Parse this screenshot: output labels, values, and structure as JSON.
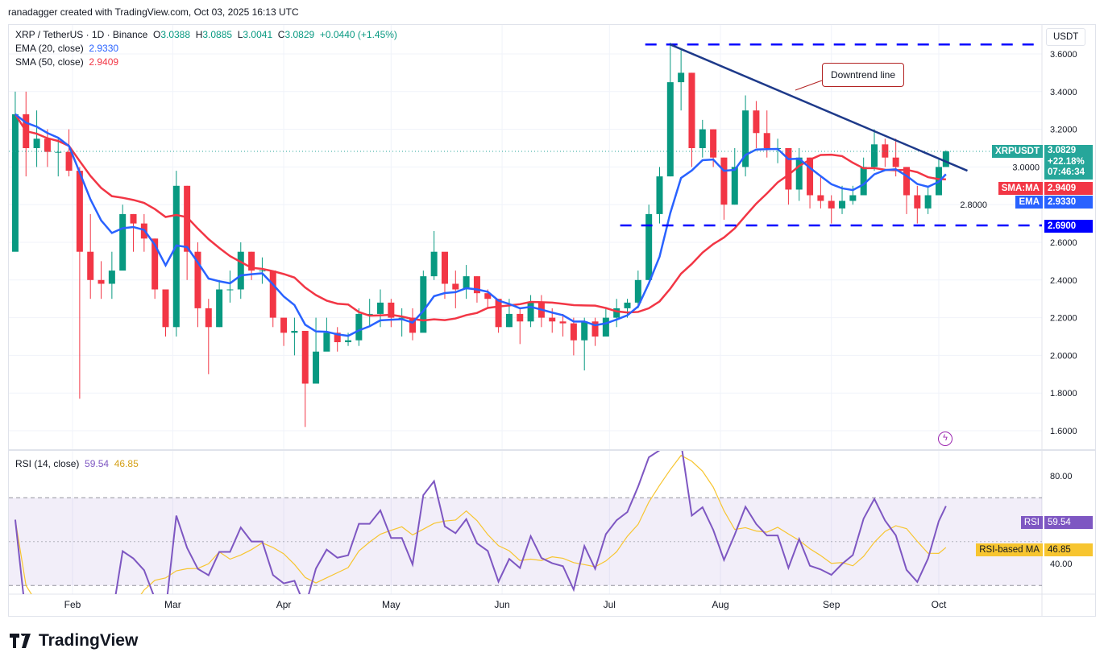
{
  "credit": "ranadagger created with TradingView.com, Oct 03, 2025 16:13 UTC",
  "legend": {
    "symbol": "XRP / TetherUS · 1D · Binance",
    "o_label": "O",
    "o": "3.0388",
    "h_label": "H",
    "h": "3.0885",
    "l_label": "L",
    "l": "3.0041",
    "c_label": "C",
    "c": "3.0829",
    "change": "+0.0440 (+1.45%)",
    "ema_label": "EMA (20, close)",
    "ema_value": "2.9330",
    "sma_label": "SMA (50, close)",
    "sma_value": "2.9409",
    "rsi_label": "RSI (14, close)",
    "rsi_value": "59.54",
    "rsi_ma_value": "46.85"
  },
  "price_axis": {
    "currency": "USDT",
    "ticks": [
      "3.6000",
      "3.4000",
      "3.2000",
      "3.0000",
      "2.8000",
      "2.6000",
      "2.4000",
      "2.2000",
      "2.0000",
      "1.8000",
      "1.6000"
    ],
    "symbol_tag": "XRPUSDT",
    "last_price": "3.0829",
    "last_change": "+22.18%",
    "countdown": "07:46:34",
    "sma_tag": "SMA:MA",
    "sma_value": "2.9409",
    "ema_tag": "EMA",
    "ema_value": "2.9330",
    "support_value": "2.6900"
  },
  "rsi_axis": {
    "ticks": [
      "80.00",
      "40.00"
    ],
    "rsi_tag": "RSI",
    "rsi_value": "59.54",
    "ma_tag": "RSI-based MA",
    "ma_value": "46.85"
  },
  "time_axis": [
    "Feb",
    "Mar",
    "Apr",
    "May",
    "Jun",
    "Jul",
    "Aug",
    "Sep",
    "Oct"
  ],
  "annotation": "Downtrend line",
  "colors": {
    "up": "#089981",
    "down": "#f23645",
    "ema": "#2962ff",
    "sma": "#f23645",
    "rsi": "#7e57c2",
    "rsi_ma": "#f7c530",
    "trendline": "#1e3a8a",
    "level": "#0000ff"
  },
  "chart_data": {
    "type": "candlestick",
    "title": "XRP / TetherUS · 1D · Binance",
    "ylim": [
      1.55,
      3.72
    ],
    "candle_format": [
      "date",
      "close",
      "high",
      "low"
    ],
    "first_open": 2.55,
    "candles": [
      [
        "2025-01-16",
        3.28,
        3.4,
        2.9
      ],
      [
        "2025-01-19",
        3.1,
        3.4,
        2.95
      ],
      [
        "2025-01-22",
        3.15,
        3.3,
        3.0
      ],
      [
        "2025-01-25",
        3.08,
        3.2,
        3.0
      ],
      [
        "2025-01-28",
        3.08,
        3.15,
        2.95
      ],
      [
        "2025-01-31",
        2.98,
        3.2,
        2.95
      ],
      [
        "2025-02-03",
        2.55,
        3.0,
        1.77
      ],
      [
        "2025-02-06",
        2.4,
        2.75,
        2.3
      ],
      [
        "2025-02-09",
        2.38,
        2.5,
        2.3
      ],
      [
        "2025-02-12",
        2.45,
        2.55,
        2.3
      ],
      [
        "2025-02-15",
        2.75,
        2.8,
        2.5
      ],
      [
        "2025-02-18",
        2.7,
        2.75,
        2.55
      ],
      [
        "2025-02-21",
        2.62,
        2.75,
        2.55
      ],
      [
        "2025-02-24",
        2.35,
        2.62,
        2.3
      ],
      [
        "2025-02-27",
        2.15,
        2.35,
        2.1
      ],
      [
        "2025-03-02",
        2.9,
        2.98,
        2.1
      ],
      [
        "2025-03-05",
        2.55,
        2.9,
        2.4
      ],
      [
        "2025-03-08",
        2.25,
        2.6,
        2.15
      ],
      [
        "2025-03-11",
        2.15,
        2.3,
        1.9
      ],
      [
        "2025-03-14",
        2.35,
        2.4,
        2.15
      ],
      [
        "2025-03-17",
        2.35,
        2.45,
        2.28
      ],
      [
        "2025-03-20",
        2.55,
        2.6,
        2.3
      ],
      [
        "2025-03-23",
        2.45,
        2.55,
        2.4
      ],
      [
        "2025-03-26",
        2.45,
        2.52,
        2.38
      ],
      [
        "2025-03-29",
        2.2,
        2.45,
        2.15
      ],
      [
        "2025-04-01",
        2.12,
        2.2,
        2.05
      ],
      [
        "2025-04-04",
        2.13,
        2.2,
        2.0
      ],
      [
        "2025-04-07",
        1.85,
        2.1,
        1.62
      ],
      [
        "2025-04-10",
        2.02,
        2.2,
        1.9
      ],
      [
        "2025-04-13",
        2.12,
        2.2,
        2.05
      ],
      [
        "2025-04-16",
        2.07,
        2.15,
        2.02
      ],
      [
        "2025-04-19",
        2.08,
        2.12,
        2.05
      ],
      [
        "2025-04-22",
        2.22,
        2.25,
        2.05
      ],
      [
        "2025-04-25",
        2.22,
        2.3,
        2.15
      ],
      [
        "2025-04-28",
        2.28,
        2.35,
        2.15
      ],
      [
        "2025-05-01",
        2.2,
        2.3,
        2.15
      ],
      [
        "2025-05-04",
        2.2,
        2.25,
        2.1
      ],
      [
        "2025-05-07",
        2.12,
        2.25,
        2.08
      ],
      [
        "2025-05-10",
        2.42,
        2.45,
        2.15
      ],
      [
        "2025-05-13",
        2.55,
        2.66,
        2.4
      ],
      [
        "2025-05-16",
        2.38,
        2.5,
        2.3
      ],
      [
        "2025-05-19",
        2.35,
        2.45,
        2.25
      ],
      [
        "2025-05-22",
        2.42,
        2.48,
        2.3
      ],
      [
        "2025-05-25",
        2.33,
        2.42,
        2.28
      ],
      [
        "2025-05-28",
        2.3,
        2.35,
        2.25
      ],
      [
        "2025-05-31",
        2.15,
        2.3,
        2.12
      ],
      [
        "2025-06-03",
        2.22,
        2.3,
        2.15
      ],
      [
        "2025-06-06",
        2.18,
        2.25,
        2.06
      ],
      [
        "2025-06-09",
        2.28,
        2.32,
        2.15
      ],
      [
        "2025-06-12",
        2.2,
        2.32,
        2.15
      ],
      [
        "2025-06-15",
        2.18,
        2.25,
        2.12
      ],
      [
        "2025-06-18",
        2.17,
        2.22,
        2.1
      ],
      [
        "2025-06-21",
        2.08,
        2.2,
        2.0
      ],
      [
        "2025-06-24",
        2.18,
        2.2,
        1.92
      ],
      [
        "2025-06-27",
        2.1,
        2.2,
        2.05
      ],
      [
        "2025-06-30",
        2.2,
        2.25,
        2.12
      ],
      [
        "2025-07-03",
        2.25,
        2.3,
        2.15
      ],
      [
        "2025-07-06",
        2.28,
        2.3,
        2.2
      ],
      [
        "2025-07-09",
        2.4,
        2.45,
        2.25
      ],
      [
        "2025-07-12",
        2.75,
        2.8,
        2.4
      ],
      [
        "2025-07-15",
        2.95,
        3.0,
        2.7
      ],
      [
        "2025-07-18",
        3.45,
        3.66,
        2.95
      ],
      [
        "2025-07-21",
        3.5,
        3.62,
        3.3
      ],
      [
        "2025-07-24",
        3.1,
        3.5,
        3.0
      ],
      [
        "2025-07-27",
        3.2,
        3.25,
        3.05
      ],
      [
        "2025-07-30",
        3.05,
        3.2,
        3.0
      ],
      [
        "2025-08-02",
        2.8,
        3.05,
        2.72
      ],
      [
        "2025-08-05",
        3.0,
        3.1,
        2.8
      ],
      [
        "2025-08-08",
        3.3,
        3.38,
        2.95
      ],
      [
        "2025-08-11",
        3.18,
        3.35,
        3.1
      ],
      [
        "2025-08-14",
        3.1,
        3.3,
        3.05
      ],
      [
        "2025-08-17",
        3.1,
        3.15,
        3.02
      ],
      [
        "2025-08-20",
        2.88,
        3.1,
        2.8
      ],
      [
        "2025-08-23",
        3.05,
        3.1,
        2.82
      ],
      [
        "2025-08-26",
        2.85,
        3.05,
        2.78
      ],
      [
        "2025-08-29",
        2.82,
        2.95,
        2.78
      ],
      [
        "2025-09-01",
        2.78,
        2.85,
        2.7
      ],
      [
        "2025-09-04",
        2.82,
        2.9,
        2.75
      ],
      [
        "2025-09-07",
        2.85,
        2.9,
        2.8
      ],
      [
        "2025-09-10",
        3.0,
        3.05,
        2.85
      ],
      [
        "2025-09-13",
        3.12,
        3.2,
        2.98
      ],
      [
        "2025-09-16",
        3.05,
        3.15,
        3.0
      ],
      [
        "2025-09-19",
        3.0,
        3.15,
        2.95
      ],
      [
        "2025-09-22",
        2.85,
        3.0,
        2.75
      ],
      [
        "2025-09-25",
        2.78,
        2.9,
        2.7
      ],
      [
        "2025-09-28",
        2.85,
        2.9,
        2.75
      ],
      [
        "2025-10-01",
        3.0,
        3.05,
        2.85
      ],
      [
        "2025-10-03",
        3.0829,
        3.0885,
        3.0041
      ]
    ],
    "trendline": {
      "start": [
        "2025-07-18",
        3.65
      ],
      "end": [
        "2025-10-09",
        2.98
      ],
      "label": "Downtrend line"
    },
    "levels": [
      {
        "price": 3.65,
        "from": "2025-07-11"
      },
      {
        "price": 2.69,
        "from": "2025-07-04"
      }
    ],
    "rsi_levels": [
      70,
      50,
      30
    ]
  }
}
